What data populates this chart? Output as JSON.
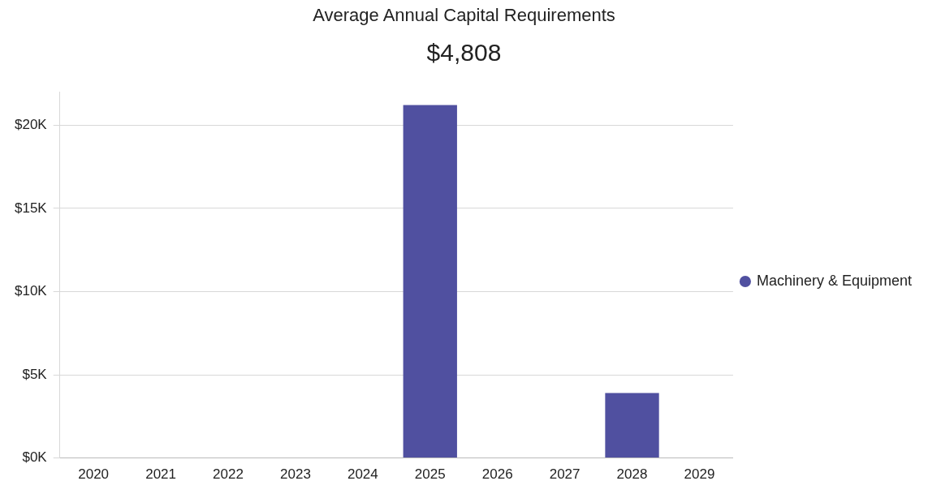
{
  "chart_data": {
    "type": "bar",
    "title": "Average Annual Capital Requirements",
    "subtitle": "$4,808",
    "categories": [
      "2020",
      "2021",
      "2022",
      "2023",
      "2024",
      "2025",
      "2026",
      "2027",
      "2028",
      "2029"
    ],
    "series": [
      {
        "name": "Machinery & Equipment",
        "color": "#5050a0",
        "values": [
          0,
          0,
          0,
          0,
          0,
          21200,
          0,
          0,
          3900,
          0
        ]
      }
    ],
    "ylim": [
      0,
      22000
    ],
    "yticks": [
      {
        "value": 0,
        "label": "$0K"
      },
      {
        "value": 5000,
        "label": "$5K"
      },
      {
        "value": 10000,
        "label": "$10K"
      },
      {
        "value": 15000,
        "label": "$15K"
      },
      {
        "value": 20000,
        "label": "$20K"
      }
    ],
    "grid": "y",
    "legend": "right"
  }
}
